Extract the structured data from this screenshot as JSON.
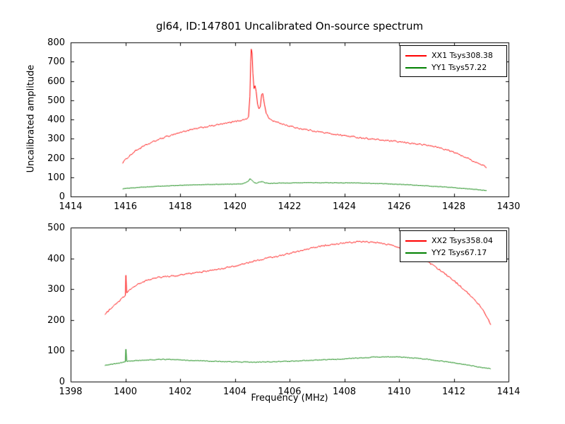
{
  "figure": {
    "background": "#ffffff",
    "frame_color": "#000000"
  },
  "chart_data": [
    {
      "type": "line",
      "title": "gl64, ID:147801 Uncalibrated On-source spectrum",
      "xlabel": "",
      "ylabel": "Uncalibrated amplitude",
      "xlim": [
        1414,
        1430
      ],
      "ylim": [
        0,
        800
      ],
      "xticks": [
        1414,
        1416,
        1418,
        1420,
        1422,
        1424,
        1426,
        1428,
        1430
      ],
      "yticks": [
        0,
        100,
        200,
        300,
        400,
        500,
        600,
        700,
        800
      ],
      "grid": false,
      "legend_position": "upper right",
      "series": [
        {
          "name": "XX1 Tsys308.38",
          "color": "#ff0000",
          "noise": 4,
          "points": [
            [
              1415.9,
              175
            ],
            [
              1416.1,
              205
            ],
            [
              1416.4,
              240
            ],
            [
              1416.8,
              270
            ],
            [
              1417.2,
              295
            ],
            [
              1417.7,
              320
            ],
            [
              1418.2,
              340
            ],
            [
              1418.7,
              355
            ],
            [
              1419.2,
              368
            ],
            [
              1419.7,
              380
            ],
            [
              1420.1,
              392
            ],
            [
              1420.3,
              398
            ],
            [
              1420.42,
              402
            ],
            [
              1420.5,
              415
            ],
            [
              1420.55,
              520
            ],
            [
              1420.58,
              700
            ],
            [
              1420.6,
              765
            ],
            [
              1420.63,
              745
            ],
            [
              1420.66,
              640
            ],
            [
              1420.7,
              560
            ],
            [
              1420.74,
              575
            ],
            [
              1420.78,
              545
            ],
            [
              1420.83,
              480
            ],
            [
              1420.88,
              455
            ],
            [
              1420.93,
              465
            ],
            [
              1420.98,
              530
            ],
            [
              1421.02,
              535
            ],
            [
              1421.08,
              480
            ],
            [
              1421.15,
              430
            ],
            [
              1421.25,
              405
            ],
            [
              1421.4,
              392
            ],
            [
              1421.7,
              378
            ],
            [
              1422.0,
              365
            ],
            [
              1422.4,
              352
            ],
            [
              1422.9,
              340
            ],
            [
              1423.4,
              328
            ],
            [
              1423.9,
              318
            ],
            [
              1424.4,
              308
            ],
            [
              1424.9,
              300
            ],
            [
              1425.4,
              292
            ],
            [
              1425.9,
              285
            ],
            [
              1426.4,
              277
            ],
            [
              1426.9,
              268
            ],
            [
              1427.2,
              262
            ],
            [
              1427.5,
              252
            ],
            [
              1427.9,
              235
            ],
            [
              1428.3,
              212
            ],
            [
              1428.7,
              185
            ],
            [
              1429.0,
              165
            ],
            [
              1429.2,
              152
            ]
          ]
        },
        {
          "name": "YY1 Tsys57.22",
          "color": "#008000",
          "noise": 1.2,
          "points": [
            [
              1415.9,
              40
            ],
            [
              1416.5,
              47
            ],
            [
              1417.2,
              53
            ],
            [
              1418.0,
              58
            ],
            [
              1419.0,
              62
            ],
            [
              1419.8,
              64
            ],
            [
              1420.3,
              66
            ],
            [
              1420.5,
              80
            ],
            [
              1420.55,
              92
            ],
            [
              1420.62,
              85
            ],
            [
              1420.7,
              72
            ],
            [
              1420.8,
              68
            ],
            [
              1420.9,
              75
            ],
            [
              1421.0,
              78
            ],
            [
              1421.1,
              70
            ],
            [
              1421.3,
              68
            ],
            [
              1421.8,
              70
            ],
            [
              1422.5,
              71
            ],
            [
              1423.5,
              71
            ],
            [
              1424.5,
              70
            ],
            [
              1425.5,
              66
            ],
            [
              1426.3,
              61
            ],
            [
              1427.0,
              55
            ],
            [
              1427.8,
              48
            ],
            [
              1428.5,
              40
            ],
            [
              1429.2,
              31
            ]
          ]
        }
      ]
    },
    {
      "type": "line",
      "title": "",
      "xlabel": "Frequency (MHz)",
      "ylabel": "",
      "xlim": [
        1398,
        1414
      ],
      "ylim": [
        0,
        500
      ],
      "xticks": [
        1398,
        1400,
        1402,
        1404,
        1406,
        1408,
        1410,
        1412,
        1414
      ],
      "yticks": [
        0,
        100,
        200,
        300,
        400,
        500
      ],
      "grid": false,
      "legend_position": "upper right",
      "series": [
        {
          "name": "XX2 Tsys358.04",
          "color": "#ff0000",
          "noise": 2.5,
          "points": [
            [
              1399.25,
              218
            ],
            [
              1399.5,
              240
            ],
            [
              1399.75,
              260
            ],
            [
              1399.95,
              275
            ],
            [
              1400.0,
              280
            ],
            [
              1400.02,
              345
            ],
            [
              1400.05,
              288
            ],
            [
              1400.2,
              300
            ],
            [
              1400.5,
              318
            ],
            [
              1400.8,
              330
            ],
            [
              1401.1,
              337
            ],
            [
              1401.5,
              341
            ],
            [
              1402.0,
              346
            ],
            [
              1402.5,
              352
            ],
            [
              1403.0,
              359
            ],
            [
              1403.5,
              366
            ],
            [
              1404.0,
              375
            ],
            [
              1404.5,
              386
            ],
            [
              1405.0,
              397
            ],
            [
              1405.5,
              406
            ],
            [
              1406.0,
              416
            ],
            [
              1406.5,
              427
            ],
            [
              1407.0,
              437
            ],
            [
              1407.5,
              445
            ],
            [
              1408.0,
              450
            ],
            [
              1408.4,
              453
            ],
            [
              1408.8,
              454
            ],
            [
              1409.2,
              451
            ],
            [
              1409.6,
              445
            ],
            [
              1410.0,
              434
            ],
            [
              1410.4,
              420
            ],
            [
              1410.8,
              402
            ],
            [
              1411.2,
              380
            ],
            [
              1411.6,
              355
            ],
            [
              1412.0,
              328
            ],
            [
              1412.4,
              297
            ],
            [
              1412.8,
              262
            ],
            [
              1413.1,
              230
            ],
            [
              1413.35,
              185
            ]
          ]
        },
        {
          "name": "YY2 Tsys67.17",
          "color": "#008000",
          "noise": 1.2,
          "points": [
            [
              1399.25,
              52
            ],
            [
              1399.6,
              58
            ],
            [
              1399.9,
              62
            ],
            [
              1400.0,
              64
            ],
            [
              1400.02,
              105
            ],
            [
              1400.05,
              66
            ],
            [
              1400.4,
              68
            ],
            [
              1400.8,
              70
            ],
            [
              1401.2,
              72
            ],
            [
              1401.6,
              72
            ],
            [
              1402.0,
              70
            ],
            [
              1402.6,
              68
            ],
            [
              1403.2,
              66
            ],
            [
              1404.0,
              64
            ],
            [
              1404.6,
              63
            ],
            [
              1405.2,
              64
            ],
            [
              1406.0,
              66
            ],
            [
              1406.5,
              68
            ],
            [
              1407.0,
              70
            ],
            [
              1407.6,
              72
            ],
            [
              1408.2,
              75
            ],
            [
              1408.9,
              78
            ],
            [
              1409.0,
              80
            ],
            [
              1409.5,
              80
            ],
            [
              1410.0,
              80
            ],
            [
              1410.5,
              77
            ],
            [
              1411.0,
              73
            ],
            [
              1411.5,
              67
            ],
            [
              1412.0,
              61
            ],
            [
              1412.5,
              54
            ],
            [
              1413.0,
              46
            ],
            [
              1413.35,
              42
            ]
          ]
        }
      ]
    }
  ]
}
